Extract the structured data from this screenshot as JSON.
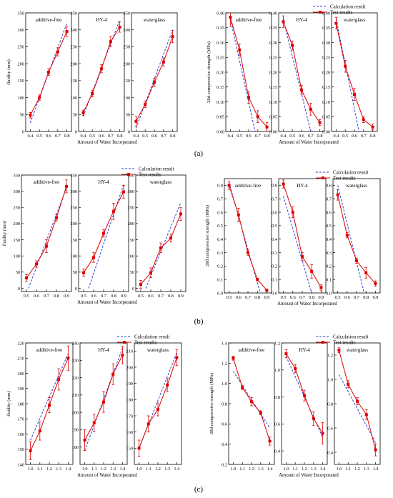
{
  "groups": [
    {
      "label": "(a)"
    },
    {
      "label": "(b)"
    },
    {
      "label": "(c)"
    }
  ],
  "legend": {
    "calc": "Calculation result",
    "test": "Test results"
  },
  "colors": {
    "calc": "#2b3fd6",
    "test": "#e00000",
    "axis": "#000000"
  },
  "chart_data": [
    {
      "type": "line",
      "id": "a-fluidity",
      "ylabel": "fluidity (mm)",
      "xlabel": "Amount of Water Incorporated",
      "ylim": [
        0,
        350
      ],
      "yticks": [
        0,
        50,
        100,
        150,
        200,
        250,
        300,
        350
      ],
      "xlim": [
        0.35,
        0.85
      ],
      "xticks": [
        0.4,
        0.5,
        0.6,
        0.7,
        0.8
      ],
      "legend_position": "none",
      "panels": [
        {
          "name": "additive-free",
          "x": [
            0.4,
            0.5,
            0.6,
            0.7,
            0.8
          ],
          "series": [
            {
              "kind": "calc",
              "x": [
                0.4,
                0.8
              ],
              "values": [
                25,
                320
              ]
            },
            {
              "kind": "test",
              "values": [
                48,
                100,
                175,
                235,
                295
              ],
              "err": [
                8,
                8,
                10,
                12,
                15
              ]
            }
          ]
        },
        {
          "name": "HY-4",
          "x": [
            0.4,
            0.5,
            0.6,
            0.7,
            0.8
          ],
          "series": [
            {
              "kind": "calc",
              "x": [
                0.4,
                0.8
              ],
              "values": [
                45,
                330
              ]
            },
            {
              "kind": "test",
              "values": [
                55,
                112,
                185,
                265,
                308
              ],
              "err": [
                8,
                10,
                12,
                15,
                15
              ]
            }
          ]
        },
        {
          "name": "waterglass",
          "x": [
            0.4,
            0.5,
            0.6,
            0.7,
            0.8
          ],
          "series": [
            {
              "kind": "calc",
              "x": [
                0.4,
                0.8
              ],
              "values": [
                10,
                300
              ]
            },
            {
              "kind": "test",
              "values": [
                30,
                80,
                145,
                205,
                280
              ],
              "err": [
                15,
                10,
                12,
                12,
                18
              ]
            }
          ]
        }
      ]
    },
    {
      "type": "line",
      "id": "a-strength",
      "ylabel": "28d compressive strength (MPa)",
      "xlabel": "Amount of Water Incorporated",
      "ylim": [
        0,
        0.4
      ],
      "yticks": [
        0,
        0.05,
        0.1,
        0.15,
        0.2,
        0.25,
        0.3,
        0.35,
        0.4
      ],
      "xlim": [
        0.35,
        0.85
      ],
      "xticks": [
        0.4,
        0.5,
        0.6,
        0.7,
        0.8
      ],
      "legend_position": "top-right",
      "panels": [
        {
          "name": "additive-free",
          "x": [
            0.4,
            0.5,
            0.6,
            0.7,
            0.8
          ],
          "series": [
            {
              "kind": "calc",
              "x": [
                0.4,
                0.67
              ],
              "values": [
                0.38,
                0.0
              ]
            },
            {
              "kind": "test",
              "values": [
                0.385,
                0.275,
                0.115,
                0.05,
                0.015
              ],
              "err": [
                0.03,
                0.02,
                0.02,
                0.02,
                0.015
              ]
            }
          ]
        },
        {
          "name": "HY-4",
          "x": [
            0.4,
            0.5,
            0.6,
            0.7,
            0.8
          ],
          "series": [
            {
              "kind": "calc",
              "x": [
                0.4,
                0.7
              ],
              "values": [
                0.38,
                0.0
              ]
            },
            {
              "kind": "test",
              "values": [
                0.37,
                0.29,
                0.14,
                0.075,
                0.03
              ],
              "err": [
                0.02,
                0.015,
                0.015,
                0.02,
                0.01
              ]
            }
          ]
        },
        {
          "name": "waterglass",
          "x": [
            0.4,
            0.5,
            0.6,
            0.7,
            0.8
          ],
          "series": [
            {
              "kind": "calc",
              "x": [
                0.4,
                0.65
              ],
              "values": [
                0.38,
                0.0
              ]
            },
            {
              "kind": "test",
              "values": [
                0.365,
                0.22,
                0.125,
                0.04,
                0.015
              ],
              "err": [
                0.02,
                0.02,
                0.02,
                0.01,
                0.01
              ]
            }
          ]
        }
      ]
    },
    {
      "type": "line",
      "id": "b-fluidity",
      "ylabel": "fluidity (mm)",
      "xlabel": "Amount of Water Incorporated",
      "ylim": [
        -10,
        350
      ],
      "yticks": [
        0,
        50,
        100,
        150,
        200,
        250,
        300,
        350
      ],
      "xlim": [
        0.45,
        0.95
      ],
      "xticks": [
        0.5,
        0.6,
        0.7,
        0.8,
        0.9
      ],
      "legend_position": "top-right",
      "panels": [
        {
          "name": "additive-free",
          "x": [
            0.5,
            0.6,
            0.7,
            0.8,
            0.9
          ],
          "series": [
            {
              "kind": "calc",
              "x": [
                0.52,
                0.9
              ],
              "values": [
                0,
                310
              ]
            },
            {
              "kind": "test",
              "values": [
                32,
                75,
                130,
                218,
                315
              ],
              "err": [
                10,
                10,
                20,
                10,
                20
              ]
            }
          ]
        },
        {
          "name": "HY-4",
          "x": [
            0.5,
            0.6,
            0.7,
            0.8,
            0.9
          ],
          "series": [
            {
              "kind": "calc",
              "x": [
                0.55,
                0.9
              ],
              "values": [
                0,
                320
              ]
            },
            {
              "kind": "test",
              "values": [
                48,
                95,
                170,
                238,
                298
              ],
              "err": [
                12,
                15,
                12,
                25,
                20
              ]
            }
          ]
        },
        {
          "name": "waterglass",
          "x": [
            0.5,
            0.6,
            0.7,
            0.8,
            0.9
          ],
          "series": [
            {
              "kind": "calc",
              "x": [
                0.55,
                0.9
              ],
              "values": [
                0,
                265
              ]
            },
            {
              "kind": "test",
              "values": [
                12,
                48,
                125,
                155,
                230
              ],
              "err": [
                12,
                15,
                15,
                12,
                20
              ]
            }
          ]
        }
      ]
    },
    {
      "type": "line",
      "id": "b-strength",
      "ylabel": "28d compressive strength (MPa)",
      "xlabel": "Amount of Water Incorporated",
      "ylim": [
        0,
        0.85
      ],
      "yticks": [
        0,
        0.1,
        0.2,
        0.3,
        0.4,
        0.5,
        0.6,
        0.7,
        0.8
      ],
      "xlim": [
        0.45,
        0.95
      ],
      "xticks": [
        0.5,
        0.6,
        0.7,
        0.8,
        0.9
      ],
      "legend_position": "top-right",
      "panels": [
        {
          "name": "additive-free",
          "x": [
            0.5,
            0.6,
            0.7,
            0.8,
            0.9
          ],
          "series": [
            {
              "kind": "calc",
              "x": [
                0.5,
                0.83
              ],
              "values": [
                0.82,
                0.0
              ]
            },
            {
              "kind": "test",
              "values": [
                0.8,
                0.58,
                0.3,
                0.1,
                0.02
              ],
              "err": [
                0.03,
                0.05,
                0.02,
                0.01,
                0.01
              ]
            }
          ]
        },
        {
          "name": "HY-4",
          "x": [
            0.5,
            0.6,
            0.7,
            0.8,
            0.9
          ],
          "series": [
            {
              "kind": "calc",
              "x": [
                0.5,
                0.8
              ],
              "values": [
                0.72,
                0.0
              ]
            },
            {
              "kind": "test",
              "values": [
                0.81,
                0.6,
                0.27,
                0.16,
                0.04
              ],
              "err": [
                0.03,
                0.04,
                0.03,
                0.05,
                0.02
              ]
            }
          ]
        },
        {
          "name": "waterglass",
          "x": [
            0.5,
            0.6,
            0.7,
            0.8,
            0.9
          ],
          "series": [
            {
              "kind": "calc",
              "x": [
                0.5,
                0.78
              ],
              "values": [
                0.8,
                0.0
              ]
            },
            {
              "kind": "test",
              "values": [
                0.73,
                0.43,
                0.24,
                0.15,
                0.07
              ],
              "err": [
                0.04,
                0.02,
                0.02,
                0.04,
                0.02
              ]
            }
          ]
        }
      ]
    },
    {
      "type": "line",
      "id": "c-fluidity",
      "ylabel": "fluidity (mm)",
      "xlabel": "Amount of Water Incorporated",
      "xlim": [
        0.95,
        1.45
      ],
      "xticks": [
        1.0,
        1.1,
        1.2,
        1.3,
        1.4
      ],
      "legend_position": "top-right",
      "panels": [
        {
          "name": "additive-free",
          "ylim": [
            140,
            220
          ],
          "yticks": [
            140,
            150,
            160,
            170,
            180,
            190,
            200,
            210,
            220
          ],
          "x": [
            1.0,
            1.1,
            1.2,
            1.3,
            1.4
          ],
          "series": [
            {
              "kind": "calc",
              "x": [
                1.0,
                1.4
              ],
              "values": [
                156,
                213
              ]
            },
            {
              "kind": "test",
              "values": [
                149,
                162,
                179,
                196,
                210
              ],
              "err": [
                6,
                6,
                5,
                7,
                8
              ]
            }
          ]
        },
        {
          "name": "HY-4",
          "ylim": [
            170,
            240
          ],
          "yticks": [
            180,
            190,
            200,
            210,
            220,
            230,
            240
          ],
          "x": [
            1.0,
            1.1,
            1.2,
            1.3,
            1.4
          ],
          "series": [
            {
              "kind": "calc",
              "x": [
                1.0,
                1.4
              ],
              "values": [
                178,
                237
              ]
            },
            {
              "kind": "test",
              "values": [
                184,
                194,
                206,
                222,
                233
              ],
              "err": [
                6,
                5,
                6,
                6,
                5
              ]
            }
          ]
        },
        {
          "name": "waterglass",
          "ylim": [
            140,
            215
          ],
          "yticks": [
            150,
            160,
            170,
            180,
            190,
            200,
            210
          ],
          "x": [
            1.0,
            1.1,
            1.2,
            1.3,
            1.4
          ],
          "series": [
            {
              "kind": "calc",
              "x": [
                1.0,
                1.4
              ],
              "values": [
                150,
                209
              ]
            },
            {
              "kind": "test",
              "values": [
                150,
                165,
                174,
                189,
                206
              ],
              "err": [
                5,
                5,
                4,
                4,
                5
              ]
            }
          ]
        }
      ]
    },
    {
      "type": "line",
      "id": "c-strength",
      "ylabel": "28d compressive strength (MPa)",
      "xlabel": "Amount of Water Incorporated",
      "xlim": [
        0.95,
        1.45
      ],
      "xticks": [
        1.0,
        1.1,
        1.2,
        1.3,
        1.4
      ],
      "legend_position": "top-right",
      "panels": [
        {
          "name": "additive-free",
          "ylim": [
            0.2,
            1.4
          ],
          "yticks": [
            0.2,
            0.4,
            0.6,
            0.8,
            1.0,
            1.2,
            1.4
          ],
          "x": [
            1.0,
            1.1,
            1.2,
            1.3,
            1.4
          ],
          "series": [
            {
              "kind": "calc",
              "x": [
                1.0,
                1.4
              ],
              "values": [
                1.12,
                0.56
              ]
            },
            {
              "kind": "test",
              "values": [
                1.25,
                0.96,
                0.82,
                0.71,
                0.43
              ],
              "err": [
                0.02,
                0.02,
                0.04,
                0.02,
                0.04
              ]
            }
          ]
        },
        {
          "name": "HY-4",
          "ylim": [
            0.3,
            1.2
          ],
          "yticks": [
            0.4,
            0.6,
            0.8,
            1.0,
            1.2
          ],
          "x": [
            1.0,
            1.1,
            1.2,
            1.3,
            1.4
          ],
          "series": [
            {
              "kind": "calc",
              "x": [
                1.0,
                1.4
              ],
              "values": [
                1.1,
                0.5
              ]
            },
            {
              "kind": "test",
              "values": [
                1.12,
                1.01,
                0.81,
                0.64,
                0.53
              ],
              "err": [
                0.03,
                0.03,
                0.04,
                0.05,
                0.08
              ]
            }
          ]
        },
        {
          "name": "waterglass",
          "ylim": [
            0.3,
            1.3
          ],
          "yticks": [
            0.4,
            0.6,
            0.8,
            1.0,
            1.2
          ],
          "x": [
            1.0,
            1.1,
            1.2,
            1.3,
            1.4
          ],
          "series": [
            {
              "kind": "calc",
              "x": [
                1.0,
                1.4
              ],
              "values": [
                1.04,
                0.48
              ]
            },
            {
              "kind": "test",
              "values": [
                1.24,
                0.96,
                0.82,
                0.71,
                0.42
              ],
              "err": [
                0.02,
                0.03,
                0.03,
                0.04,
                0.05
              ]
            }
          ]
        }
      ]
    }
  ]
}
